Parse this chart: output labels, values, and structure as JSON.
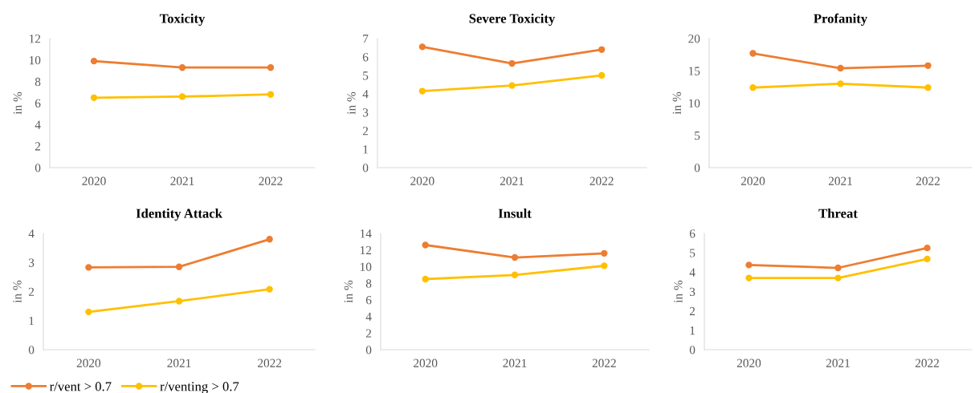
{
  "chart_data": [
    {
      "type": "line",
      "title": "Toxicity",
      "ylabel": "in %",
      "categories": [
        "2020",
        "2021",
        "2022"
      ],
      "ylim": [
        0,
        12
      ],
      "yticks": [
        0,
        2,
        4,
        6,
        8,
        10,
        12
      ],
      "grid": false,
      "marker": "circle",
      "legend": false,
      "series": [
        {
          "color": "#ed7d31",
          "values": [
            9.9,
            9.3,
            9.3
          ]
        },
        {
          "color": "#ffc000",
          "values": [
            6.5,
            6.6,
            6.8
          ]
        }
      ]
    },
    {
      "type": "line",
      "title": "Severe Toxicity",
      "ylabel": "in %",
      "categories": [
        "2020",
        "2021",
        "2022"
      ],
      "ylim": [
        0,
        7
      ],
      "yticks": [
        0,
        1,
        2,
        3,
        4,
        5,
        6,
        7
      ],
      "grid": false,
      "marker": "circle",
      "legend": false,
      "series": [
        {
          "color": "#ed7d31",
          "values": [
            6.55,
            5.65,
            6.4
          ]
        },
        {
          "color": "#ffc000",
          "values": [
            4.15,
            4.45,
            5.0
          ]
        }
      ]
    },
    {
      "type": "line",
      "title": "Profanity",
      "ylabel": "in %",
      "categories": [
        "2020",
        "2021",
        "2022"
      ],
      "ylim": [
        0,
        20
      ],
      "yticks": [
        0,
        5,
        10,
        15,
        20
      ],
      "grid": false,
      "marker": "circle",
      "legend": false,
      "series": [
        {
          "color": "#ed7d31",
          "values": [
            17.7,
            15.4,
            15.8
          ]
        },
        {
          "color": "#ffc000",
          "values": [
            12.4,
            13.0,
            12.4
          ]
        }
      ]
    },
    {
      "type": "line",
      "title": "Identity Attack",
      "ylabel": "in %",
      "categories": [
        "2020",
        "2021",
        "2022"
      ],
      "ylim": [
        0,
        4
      ],
      "yticks": [
        0,
        1,
        2,
        3,
        4
      ],
      "grid": false,
      "marker": "circle",
      "legend": "bottom",
      "series": [
        {
          "name": "r/vent > 0.7",
          "color": "#ed7d31",
          "values": [
            2.83,
            2.85,
            3.8
          ]
        },
        {
          "name": "r/venting > 0.7",
          "color": "#ffc000",
          "values": [
            1.3,
            1.67,
            2.08
          ]
        }
      ]
    },
    {
      "type": "line",
      "title": "Insult",
      "ylabel": "in %",
      "categories": [
        "2020",
        "2021",
        "2022"
      ],
      "ylim": [
        0,
        14
      ],
      "yticks": [
        0,
        2,
        4,
        6,
        8,
        10,
        12,
        14
      ],
      "grid": false,
      "marker": "circle",
      "legend": false,
      "series": [
        {
          "color": "#ed7d31",
          "values": [
            12.6,
            11.1,
            11.6
          ]
        },
        {
          "color": "#ffc000",
          "values": [
            8.5,
            9.0,
            10.1
          ]
        }
      ]
    },
    {
      "type": "line",
      "title": "Threat",
      "ylabel": "in %",
      "categories": [
        "2020",
        "2021",
        "2022"
      ],
      "ylim": [
        0,
        6
      ],
      "yticks": [
        0,
        1,
        2,
        3,
        4,
        5,
        6
      ],
      "grid": false,
      "marker": "circle",
      "legend": false,
      "series": [
        {
          "color": "#ed7d31",
          "values": [
            4.37,
            4.22,
            5.25
          ]
        },
        {
          "color": "#ffc000",
          "values": [
            3.7,
            3.7,
            4.68
          ]
        }
      ]
    }
  ]
}
